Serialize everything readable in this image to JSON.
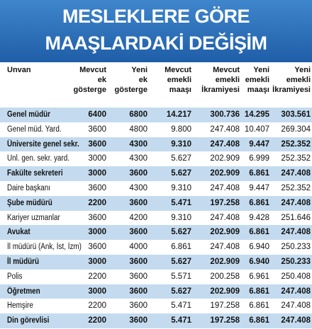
{
  "header": {
    "title": [
      "MESLEKLERE GÖRE",
      "MAAŞLARDAKİ DEĞİŞİM"
    ]
  },
  "table": {
    "columns": [
      [
        "Unvan"
      ],
      [
        "Mevcut",
        "ek",
        "gösterge"
      ],
      [
        "Yeni",
        "ek",
        "gösterge"
      ],
      [
        "Mevcut",
        "emekli",
        "maaşı"
      ],
      [
        "Mevcut",
        "emekli",
        "İkramiyesi"
      ],
      [
        "Yeni",
        "emekli",
        "maaşı"
      ],
      [
        "Yeni",
        "emekli",
        "İkramiyesi"
      ]
    ],
    "rows": [
      [
        "Genel müdür",
        "6400",
        "6800",
        "14.217",
        "300.736",
        "14.295",
        "303.561"
      ],
      [
        "Genel müd. Yard.",
        "3600",
        "4800",
        "9.800",
        "247.408",
        "10.407",
        "269.304"
      ],
      [
        "Üniversite genel sekr.",
        "3600",
        "4300",
        "9.310",
        "247.408",
        "9.447",
        "252.352"
      ],
      [
        "Ünl. gen. sekr. yard.",
        "3000",
        "4300",
        "5.627",
        "202.909",
        "6.999",
        "252.352"
      ],
      [
        "Fakülte sekreteri",
        "3000",
        "3600",
        "5.627",
        "202.909",
        "6.861",
        "247.408"
      ],
      [
        "Daire başkanı",
        "3600",
        "4300",
        "9.310",
        "247.408",
        "9.447",
        "252.352"
      ],
      [
        "Şube müdürü",
        "2200",
        "3600",
        "5.471",
        "197.258",
        "6.861",
        "247.408"
      ],
      [
        "Kariyer uzmanlar",
        "3600",
        "4200",
        "9.310",
        "247.408",
        "9.428",
        "251.646"
      ],
      [
        "Avukat",
        "3000",
        "3600",
        "5.627",
        "202.909",
        "6.861",
        "247.408"
      ],
      [
        "İl müdürü (Ank, İst, İzm)",
        "3600",
        "4000",
        "6.861",
        "247.408",
        "6.940",
        "250.233"
      ],
      [
        "İl müdürü",
        "3000",
        "3600",
        "5.627",
        "202.909",
        "6.940",
        "250.233"
      ],
      [
        "Polis",
        "2200",
        "3600",
        "5.571",
        "200.258",
        "6.961",
        "250.408"
      ],
      [
        "Öğretmen",
        "3000",
        "3600",
        "5.627",
        "202.909",
        "6.861",
        "247.408"
      ],
      [
        "Hemşire",
        "2200",
        "3600",
        "5.471",
        "197.258",
        "6.861",
        "247.408"
      ],
      [
        "Din görevlisi",
        "2200",
        "3600",
        "5.471",
        "197.258",
        "6.861",
        "247.408"
      ]
    ]
  }
}
